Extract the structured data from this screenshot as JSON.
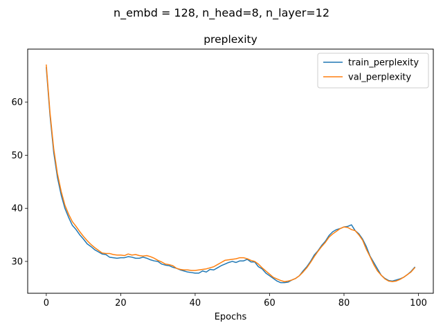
{
  "suptitle": "n_embd = 128, n_head=8, n_layer=12",
  "chart_data": {
    "type": "line",
    "title": "preplexity",
    "xlabel": "Epochs",
    "ylabel": "",
    "xlim": [
      -5,
      104
    ],
    "ylim": [
      24,
      70
    ],
    "xticks": [
      0,
      20,
      40,
      60,
      80,
      100
    ],
    "yticks": [
      30,
      40,
      50,
      60
    ],
    "grid": false,
    "legend_position": "top-right",
    "series": [
      {
        "name": "train_perplexity",
        "color": "#1f77b4",
        "x": [
          0,
          1,
          2,
          3,
          4,
          5,
          6,
          7,
          8,
          9,
          10,
          11,
          12,
          13,
          14,
          15,
          16,
          17,
          18,
          19,
          20,
          21,
          22,
          23,
          24,
          25,
          26,
          27,
          28,
          29,
          30,
          31,
          32,
          33,
          34,
          35,
          36,
          37,
          38,
          39,
          40,
          41,
          42,
          43,
          44,
          45,
          46,
          47,
          48,
          49,
          50,
          51,
          52,
          53,
          54,
          55,
          56,
          57,
          58,
          59,
          60,
          61,
          62,
          63,
          64,
          65,
          66,
          67,
          68,
          69,
          70,
          71,
          72,
          73,
          74,
          75,
          76,
          77,
          78,
          79,
          80,
          81,
          82,
          83,
          84,
          85,
          86,
          87,
          88,
          89,
          90,
          91,
          92,
          93,
          94,
          95,
          96,
          97,
          98,
          99
        ],
        "values": [
          66.5,
          57.5,
          50.5,
          45.8,
          42.5,
          40.0,
          38.3,
          36.8,
          36.0,
          35.0,
          34.2,
          33.3,
          32.8,
          32.2,
          31.8,
          31.4,
          31.3,
          30.8,
          30.7,
          30.6,
          30.7,
          30.7,
          30.9,
          30.8,
          30.6,
          30.6,
          30.8,
          30.6,
          30.3,
          30.1,
          30.0,
          29.5,
          29.3,
          29.2,
          28.9,
          28.7,
          28.4,
          28.2,
          28.0,
          27.9,
          27.8,
          27.8,
          28.2,
          28.0,
          28.5,
          28.4,
          28.8,
          29.2,
          29.5,
          29.8,
          30.0,
          29.8,
          30.1,
          30.1,
          30.4,
          29.9,
          29.9,
          29.0,
          28.6,
          27.8,
          27.3,
          26.8,
          26.3,
          26.0,
          26.0,
          26.1,
          26.5,
          26.8,
          27.3,
          28.2,
          29.0,
          30.0,
          31.2,
          32.0,
          33.0,
          33.8,
          34.9,
          35.6,
          36.0,
          36.2,
          36.5,
          36.6,
          36.9,
          35.8,
          35.2,
          34.2,
          32.8,
          31.0,
          29.8,
          28.6,
          27.4,
          26.8,
          26.4,
          26.3,
          26.5,
          26.7,
          27.0,
          27.5,
          28.1,
          28.9
        ]
      },
      {
        "name": "val_perplexity",
        "color": "#ff7f0e",
        "x": [
          0,
          1,
          2,
          3,
          4,
          5,
          6,
          7,
          8,
          9,
          10,
          11,
          12,
          13,
          14,
          15,
          16,
          17,
          18,
          19,
          20,
          21,
          22,
          23,
          24,
          25,
          26,
          27,
          28,
          29,
          30,
          31,
          32,
          33,
          34,
          35,
          36,
          37,
          38,
          39,
          40,
          41,
          42,
          43,
          44,
          45,
          46,
          47,
          48,
          49,
          50,
          51,
          52,
          53,
          54,
          55,
          56,
          57,
          58,
          59,
          60,
          61,
          62,
          63,
          64,
          65,
          66,
          67,
          68,
          69,
          70,
          71,
          72,
          73,
          74,
          75,
          76,
          77,
          78,
          79,
          80,
          81,
          82,
          83,
          84,
          85,
          86,
          87,
          88,
          89,
          90,
          91,
          92,
          93,
          94,
          95,
          96,
          97,
          98,
          99
        ],
        "values": [
          67.0,
          58.0,
          51.2,
          46.5,
          43.2,
          40.6,
          38.9,
          37.5,
          36.6,
          35.6,
          34.7,
          33.9,
          33.2,
          32.6,
          32.1,
          31.6,
          31.5,
          31.5,
          31.3,
          31.2,
          31.2,
          31.1,
          31.4,
          31.2,
          31.3,
          31.1,
          31.0,
          31.1,
          30.9,
          30.6,
          30.2,
          29.9,
          29.5,
          29.4,
          29.2,
          28.7,
          28.5,
          28.4,
          28.4,
          28.3,
          28.3,
          28.4,
          28.5,
          28.6,
          28.8,
          29.0,
          29.4,
          29.8,
          30.2,
          30.3,
          30.4,
          30.5,
          30.7,
          30.7,
          30.5,
          30.2,
          30.0,
          29.5,
          28.8,
          28.2,
          27.6,
          27.0,
          26.7,
          26.4,
          26.2,
          26.3,
          26.5,
          26.8,
          27.3,
          28.0,
          28.8,
          29.8,
          30.9,
          31.9,
          32.8,
          33.6,
          34.6,
          35.2,
          35.7,
          36.2,
          36.5,
          36.4,
          36.0,
          35.8,
          35.0,
          34.0,
          32.3,
          30.9,
          29.4,
          28.2,
          27.4,
          26.7,
          26.3,
          26.2,
          26.3,
          26.6,
          27.0,
          27.5,
          28.0,
          28.8
        ]
      }
    ]
  }
}
